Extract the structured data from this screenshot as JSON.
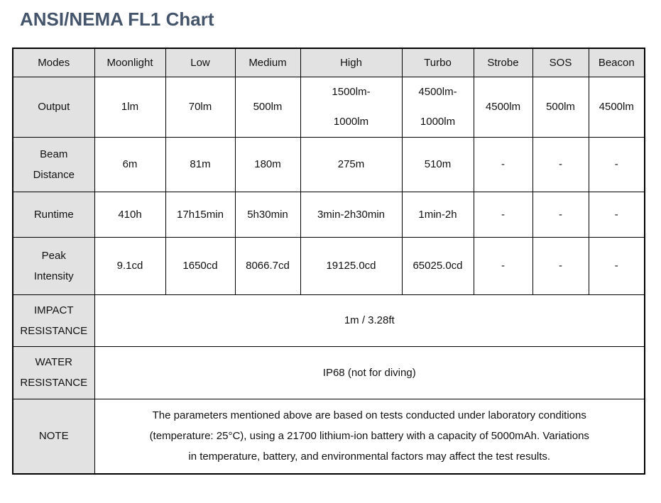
{
  "page": {
    "colors": {
      "title_text": "#44546A",
      "header_fill": "#e3e2e2",
      "cell_border": "#000000",
      "body_text": "#111111",
      "background": "#ffffff"
    }
  },
  "chart_data": {
    "type": "table",
    "title": "ANSI/NEMA FL1 Chart",
    "columns": [
      "Modes",
      "Moonlight",
      "Low",
      "Medium",
      "High",
      "Turbo",
      "Strobe",
      "SOS",
      "Beacon"
    ],
    "rows": [
      {
        "key": "output",
        "label": "Output",
        "values": [
          "1lm",
          "70lm",
          "500lm",
          "1500lm-\n1000lm",
          "4500lm-\n1000lm",
          "4500lm",
          "500lm",
          "4500lm"
        ]
      },
      {
        "key": "beam-distance",
        "label": "Beam\nDistance",
        "values": [
          "6m",
          "81m",
          "180m",
          "275m",
          "510m",
          "-",
          "-",
          "-"
        ]
      },
      {
        "key": "runtime",
        "label": "Runtime",
        "values": [
          "410h",
          "17h15min",
          "5h30min",
          "3min-2h30min",
          "1min-2h",
          "-",
          "-",
          "-"
        ]
      },
      {
        "key": "peak-intensity",
        "label": "Peak\nIntensity",
        "values": [
          "9.1cd",
          "1650cd",
          "8066.7cd",
          "19125.0cd",
          "65025.0cd",
          "-",
          "-",
          "-"
        ]
      }
    ],
    "span_rows": [
      {
        "key": "impact-resistance",
        "label": "IMPACT\nRESISTANCE",
        "value": "1m / 3.28ft"
      },
      {
        "key": "water-resistance",
        "label": "WATER\nRESISTANCE",
        "value": "IP68 (not for diving)"
      },
      {
        "key": "note",
        "label": "NOTE",
        "value": "The parameters mentioned above are based on tests conducted under laboratory conditions\n(temperature: 25°C), using a 21700 lithium-ion battery with a capacity of 5000mAh. Variations\nin temperature, battery, and environmental factors may affect the test results."
      }
    ]
  }
}
